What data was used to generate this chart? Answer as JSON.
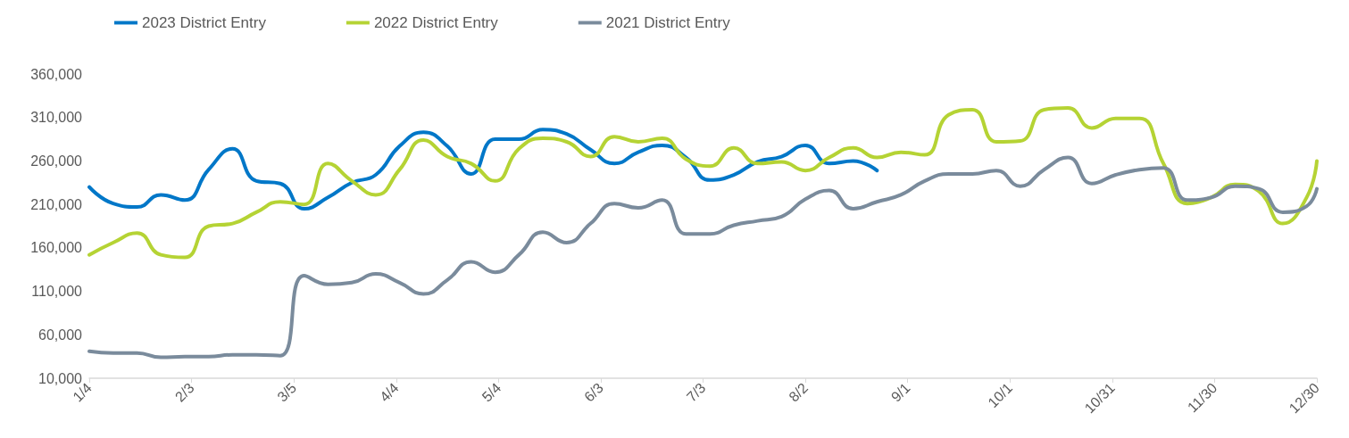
{
  "chart_data": {
    "type": "line",
    "x": [
      "--01-04",
      "--01-11",
      "--01-18",
      "--01-25",
      "--02-01",
      "--02-08",
      "--02-15",
      "--02-22",
      "--03-01",
      "--03-08",
      "--03-15",
      "--03-22",
      "--03-29",
      "--04-05",
      "--04-12",
      "--04-19",
      "--04-26",
      "--05-03",
      "--05-10",
      "--05-17",
      "--05-24",
      "--05-31",
      "--06-07",
      "--06-14",
      "--06-21",
      "--06-28",
      "--07-05",
      "--07-12",
      "--07-19",
      "--07-26",
      "--08-02",
      "--08-09",
      "--08-16",
      "--08-23",
      "--08-30",
      "--09-06",
      "--09-13",
      "--09-20",
      "--09-27",
      "--10-04",
      "--10-11",
      "--10-18",
      "--10-25",
      "--11-01",
      "--11-08",
      "--11-15",
      "--11-22",
      "--11-29",
      "--12-06",
      "--12-13",
      "--12-20",
      "--12-27",
      "--12-30"
    ],
    "series": [
      {
        "name": "2023 District Entry",
        "color": "#0077c8",
        "values": [
          230000,
          211000,
          207000,
          221000,
          215000,
          250000,
          274000,
          237000,
          234000,
          205000,
          218000,
          235000,
          244000,
          277000,
          293000,
          277000,
          245000,
          285000,
          285000,
          296000,
          291000,
          273000,
          257000,
          270000,
          278000,
          264000,
          238000,
          244000,
          259000,
          265000,
          278000,
          257000,
          260000,
          249000,
          null,
          null,
          null,
          null,
          null,
          null,
          null,
          null,
          null,
          null,
          null,
          null,
          null,
          null,
          null,
          null,
          null,
          null,
          null
        ]
      },
      {
        "name": "2022 District Entry",
        "color": "#b5d334",
        "values": [
          152000,
          166000,
          177000,
          152000,
          149000,
          185000,
          188000,
          201000,
          213000,
          210000,
          257000,
          237000,
          221000,
          250000,
          284000,
          265000,
          257000,
          237000,
          274000,
          286000,
          282000,
          265000,
          288000,
          282000,
          286000,
          262000,
          254000,
          275000,
          257000,
          259000,
          249000,
          264000,
          275000,
          264000,
          270000,
          267000,
          313000,
          319000,
          282000,
          283000,
          319000,
          321000,
          298000,
          309000,
          309000,
          257000,
          211000,
          218000,
          233000,
          225000,
          188000,
          218000,
          260000
        ]
      },
      {
        "name": "2021 District Entry",
        "color": "#7a8b9c",
        "values": [
          41000,
          39000,
          39000,
          34000,
          35000,
          35000,
          37000,
          37000,
          36000,
          128000,
          118000,
          120000,
          130000,
          120000,
          107000,
          123000,
          144000,
          132000,
          152000,
          178000,
          166000,
          188000,
          211000,
          206000,
          215000,
          176000,
          176000,
          186000,
          191000,
          196000,
          216000,
          226000,
          205000,
          213000,
          221000,
          237000,
          245000,
          245000,
          249000,
          231000,
          250000,
          264000,
          234000,
          244000,
          250000,
          252000,
          215000,
          218000,
          231000,
          228000,
          201000,
          208000,
          228000
        ]
      }
    ],
    "xlim": [
      "--01-04",
      "--12-30"
    ],
    "xticks": [
      {
        "value": "--01-04",
        "label": "1/4"
      },
      {
        "value": "--02-03",
        "label": "2/3"
      },
      {
        "value": "--03-05",
        "label": "3/5"
      },
      {
        "value": "--04-04",
        "label": "4/4"
      },
      {
        "value": "--05-04",
        "label": "5/4"
      },
      {
        "value": "--06-03",
        "label": "6/3"
      },
      {
        "value": "--07-03",
        "label": "7/3"
      },
      {
        "value": "--08-02",
        "label": "8/2"
      },
      {
        "value": "--09-01",
        "label": "9/1"
      },
      {
        "value": "--10-01",
        "label": "10/1"
      },
      {
        "value": "--10-31",
        "label": "10/31"
      },
      {
        "value": "--11-30",
        "label": "11/30"
      },
      {
        "value": "--12-30",
        "label": "12/30"
      }
    ],
    "ylim": [
      10000,
      360000
    ],
    "yticks": [
      {
        "value": 10000,
        "label": "10,000"
      },
      {
        "value": 60000,
        "label": "60,000"
      },
      {
        "value": 110000,
        "label": "110,000"
      },
      {
        "value": 160000,
        "label": "160,000"
      },
      {
        "value": 210000,
        "label": "210,000"
      },
      {
        "value": 260000,
        "label": "260,000"
      },
      {
        "value": 310000,
        "label": "310,000"
      },
      {
        "value": 360000,
        "label": "360,000"
      }
    ],
    "grid": false,
    "legend": "top left",
    "marker": "none"
  }
}
